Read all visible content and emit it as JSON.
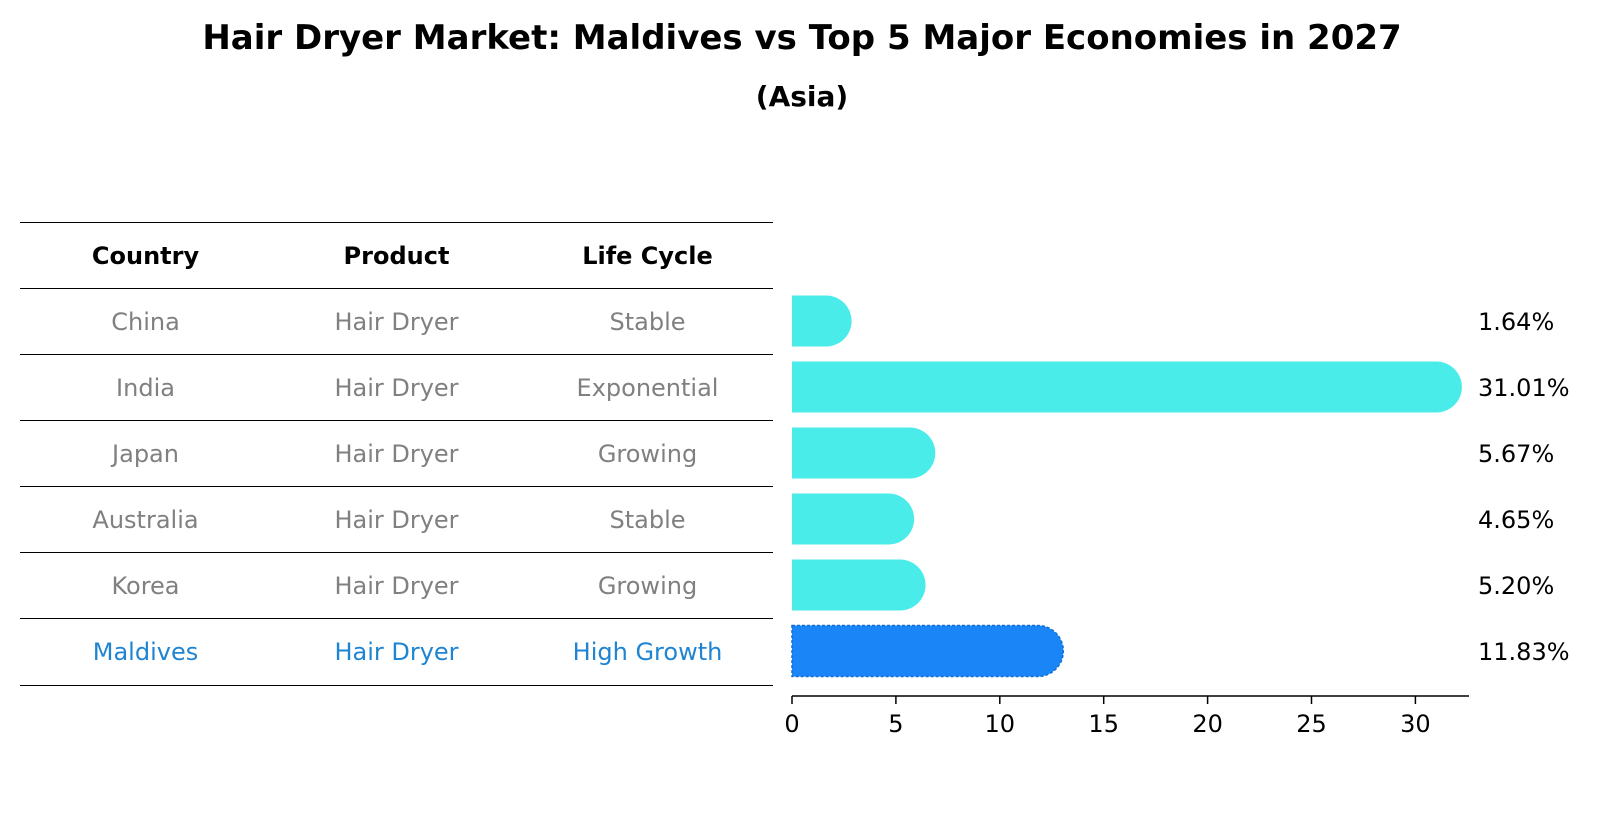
{
  "title": "Hair Dryer Market: Maldives vs Top 5 Major Economies in 2027",
  "subtitle": "(Asia)",
  "table": {
    "headers": [
      "Country",
      "Product",
      "Life Cycle"
    ],
    "rows": [
      [
        "China",
        "Hair Dryer",
        "Stable"
      ],
      [
        "India",
        "Hair Dryer",
        "Exponential"
      ],
      [
        "Japan",
        "Hair Dryer",
        "Growing"
      ],
      [
        "Australia",
        "Hair Dryer",
        "Stable"
      ],
      [
        "Korea",
        "Hair Dryer",
        "Growing"
      ],
      [
        "Maldives",
        "Hair Dryer",
        "High Growth"
      ]
    ],
    "highlight_row": 5
  },
  "colors": {
    "bar": "#4aecea",
    "highlight_bar": "#1a85f7",
    "text_gray": "#808080",
    "text_highlight": "#1f84d2"
  },
  "chart_data": {
    "type": "bar",
    "orientation": "horizontal",
    "categories": [
      "China",
      "India",
      "Japan",
      "Australia",
      "Korea",
      "Maldives"
    ],
    "values": [
      1.64,
      31.01,
      5.67,
      4.65,
      5.2,
      11.83
    ],
    "labels": [
      "1.64%",
      "31.01%",
      "5.67%",
      "4.65%",
      "5.20%",
      "11.83%"
    ],
    "highlight": "Maldives",
    "xlim": [
      0,
      32.5
    ],
    "xticks": [
      0,
      5,
      10,
      15,
      20,
      25,
      30
    ],
    "xlabel": "",
    "ylabel": ""
  }
}
